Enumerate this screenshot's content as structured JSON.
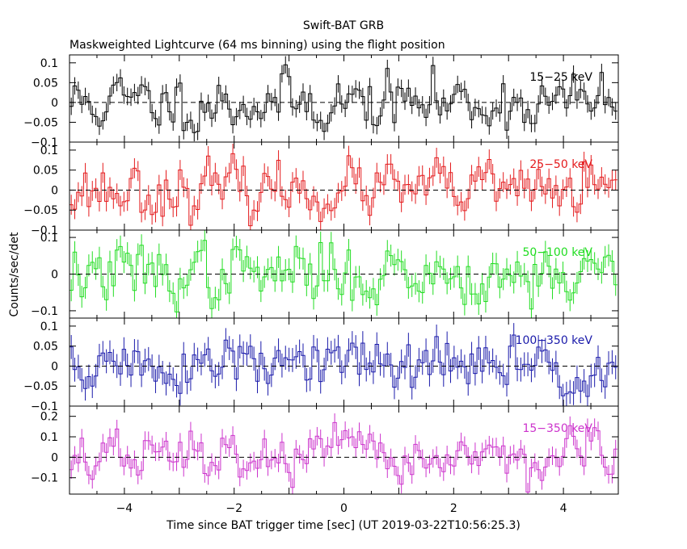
{
  "chart_data": {
    "type": "line",
    "title": "Swift-BAT GRB",
    "subtitle": "Maskweighted Lightcurve (64 ms binning) using the flight position",
    "xlabel": "Time since BAT trigger time [sec] (UT 2019-03-22T10:56:25.3)",
    "ylabel": "Counts/sec/det",
    "xlim": [
      -5,
      5
    ],
    "x_ticks": [
      -4,
      -2,
      0,
      2,
      4
    ],
    "x_tick_labels": [
      "−4",
      "−2",
      "0",
      "2",
      "4"
    ],
    "bin_width": 0.064,
    "panels": [
      {
        "name": "15-25 keV",
        "label": "15−25 keV",
        "color": "#000000",
        "ylim": [
          -0.1,
          0.12
        ],
        "y_ticks": [
          -0.1,
          -0.05,
          0,
          0.05,
          0.1
        ],
        "y_tick_labels": [
          "−0.1",
          "−0.05",
          "0",
          "0.05",
          "0.1"
        ],
        "noise_sd": 0.035,
        "err": 0.022,
        "seed": 11
      },
      {
        "name": "25-50 keV",
        "label": "25−50 keV",
        "color": "#e41a1c",
        "ylim": [
          -0.1,
          0.12
        ],
        "y_ticks": [
          -0.1,
          -0.05,
          0,
          0.05,
          0.1
        ],
        "y_tick_labels": [
          "−0.1",
          "−0.05",
          "0",
          "0.05",
          "0.1"
        ],
        "noise_sd": 0.033,
        "err": 0.025,
        "seed": 23
      },
      {
        "name": "50-100 keV",
        "label": "50−100 keV",
        "color": "#22dd22",
        "ylim": [
          -0.12,
          0.12
        ],
        "y_ticks": [
          -0.1,
          0,
          0.1
        ],
        "y_tick_labels": [
          "−0.1",
          "0",
          "0.1"
        ],
        "noise_sd": 0.04,
        "err": 0.03,
        "seed": 37
      },
      {
        "name": "100-350 keV",
        "label": "100−350 keV",
        "color": "#1a1aaa",
        "ylim": [
          -0.1,
          0.12
        ],
        "y_ticks": [
          -0.1,
          -0.05,
          0,
          0.05,
          0.1
        ],
        "y_tick_labels": [
          "−0.1",
          "−0.05",
          "0",
          "0.05",
          "0.1"
        ],
        "noise_sd": 0.035,
        "err": 0.03,
        "seed": 51
      },
      {
        "name": "15-350 keV",
        "label": "15−350 keV",
        "color": "#cc33cc",
        "ylim": [
          -0.18,
          0.25
        ],
        "y_ticks": [
          -0.1,
          0,
          0.1,
          0.2
        ],
        "y_tick_labels": [
          "−0.1",
          "0",
          "0.1",
          "0.2"
        ],
        "noise_sd": 0.06,
        "err": 0.045,
        "seed": 67
      }
    ]
  }
}
